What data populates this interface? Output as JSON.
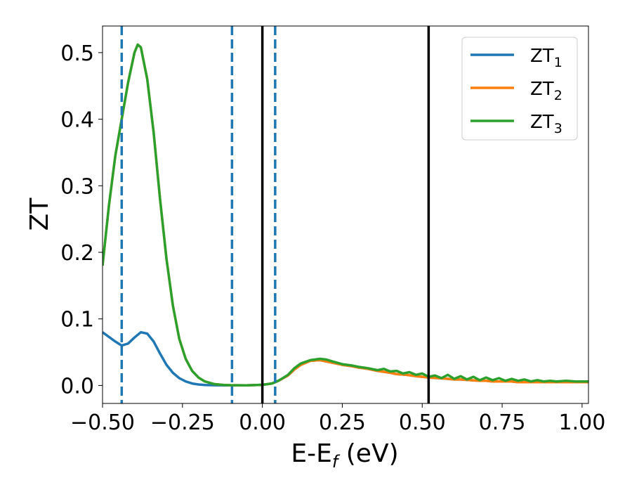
{
  "chart_data": {
    "type": "line",
    "xlabel": "E-E",
    "xlabel_sub": "f",
    "xlabel_unit": " (eV)",
    "ylabel": "ZT",
    "xlim": [
      -0.5,
      1.02
    ],
    "ylim": [
      -0.027,
      0.54
    ],
    "xticks": [
      -0.5,
      -0.25,
      0.0,
      0.25,
      0.5,
      0.75,
      1.0
    ],
    "xtick_labels": [
      "−0.50",
      "−0.25",
      "0.00",
      "0.25",
      "0.50",
      "0.75",
      "1.00"
    ],
    "yticks": [
      0.0,
      0.1,
      0.2,
      0.3,
      0.4,
      0.5
    ],
    "ytick_labels": [
      "0.0",
      "0.1",
      "0.2",
      "0.3",
      "0.4",
      "0.5"
    ],
    "grid": false,
    "legend_position": "top-right",
    "vlines_dashed": {
      "color": "#1f77b4",
      "x": [
        -0.44,
        -0.095,
        0.04
      ]
    },
    "vlines_solid": {
      "color": "#000000",
      "x": [
        0.0,
        0.52
      ]
    },
    "series": [
      {
        "name": "ZT",
        "sub": "1",
        "color": "#1f77b4",
        "x": [
          -0.5,
          -0.48,
          -0.46,
          -0.44,
          -0.42,
          -0.4,
          -0.38,
          -0.36,
          -0.34,
          -0.32,
          -0.3,
          -0.28,
          -0.26,
          -0.24,
          -0.22,
          -0.2,
          -0.18,
          -0.15,
          -0.12,
          -0.1,
          -0.05,
          0.0,
          0.03,
          0.05,
          0.08,
          0.1,
          0.12,
          0.15,
          0.18,
          0.2,
          0.22,
          0.25,
          0.28,
          0.3,
          0.33,
          0.36,
          0.4,
          0.42,
          0.45,
          0.48,
          0.5,
          0.52,
          0.55,
          0.58,
          0.6,
          0.62,
          0.65,
          0.68,
          0.7,
          0.72,
          0.75,
          0.78,
          0.8,
          0.83,
          0.86,
          0.9,
          0.95,
          1.0,
          1.02
        ],
        "values": [
          0.08,
          0.073,
          0.066,
          0.06,
          0.063,
          0.072,
          0.08,
          0.078,
          0.066,
          0.048,
          0.031,
          0.019,
          0.011,
          0.006,
          0.003,
          0.0015,
          0.0008,
          0.0003,
          0.0001,
          0.0001,
          0.0002,
          0.001,
          0.003,
          0.007,
          0.015,
          0.024,
          0.031,
          0.037,
          0.038,
          0.036,
          0.034,
          0.031,
          0.029,
          0.027,
          0.025,
          0.022,
          0.019,
          0.017,
          0.016,
          0.014,
          0.013,
          0.012,
          0.011,
          0.01,
          0.009,
          0.009,
          0.008,
          0.007,
          0.007,
          0.006,
          0.006,
          0.006,
          0.005,
          0.005,
          0.005,
          0.005,
          0.005,
          0.005,
          0.005
        ]
      },
      {
        "name": "ZT",
        "sub": "2",
        "color": "#ff7f0e",
        "x": [
          -0.5,
          -0.48,
          -0.46,
          -0.44,
          -0.42,
          -0.4,
          -0.39,
          -0.38,
          -0.36,
          -0.34,
          -0.32,
          -0.3,
          -0.28,
          -0.26,
          -0.24,
          -0.22,
          -0.2,
          -0.18,
          -0.15,
          -0.12,
          -0.1,
          -0.05,
          0.0,
          0.03,
          0.05,
          0.08,
          0.1,
          0.12,
          0.15,
          0.18,
          0.2,
          0.22,
          0.25,
          0.28,
          0.3,
          0.33,
          0.36,
          0.4,
          0.42,
          0.45,
          0.48,
          0.5,
          0.52,
          0.55,
          0.58,
          0.6,
          0.62,
          0.65,
          0.68,
          0.7,
          0.72,
          0.75,
          0.78,
          0.8,
          0.83,
          0.86,
          0.9,
          0.95,
          1.0,
          1.02
        ],
        "values": [
          0.18,
          0.27,
          0.345,
          0.4,
          0.455,
          0.5,
          0.512,
          0.508,
          0.46,
          0.38,
          0.28,
          0.19,
          0.12,
          0.07,
          0.04,
          0.022,
          0.012,
          0.006,
          0.002,
          0.0008,
          0.0004,
          0.0002,
          0.001,
          0.003,
          0.007,
          0.015,
          0.024,
          0.031,
          0.037,
          0.038,
          0.036,
          0.034,
          0.031,
          0.029,
          0.027,
          0.025,
          0.022,
          0.019,
          0.017,
          0.016,
          0.014,
          0.013,
          0.012,
          0.011,
          0.01,
          0.009,
          0.009,
          0.008,
          0.007,
          0.007,
          0.006,
          0.006,
          0.006,
          0.005,
          0.005,
          0.005,
          0.005,
          0.005,
          0.005,
          0.005
        ]
      },
      {
        "name": "ZT",
        "sub": "3",
        "color": "#2ca02c",
        "x": [
          -0.5,
          -0.48,
          -0.46,
          -0.44,
          -0.42,
          -0.4,
          -0.39,
          -0.38,
          -0.36,
          -0.34,
          -0.32,
          -0.3,
          -0.28,
          -0.26,
          -0.24,
          -0.22,
          -0.2,
          -0.18,
          -0.15,
          -0.12,
          -0.1,
          -0.05,
          0.0,
          0.03,
          0.05,
          0.08,
          0.1,
          0.12,
          0.15,
          0.18,
          0.2,
          0.22,
          0.25,
          0.28,
          0.3,
          0.33,
          0.36,
          0.38,
          0.4,
          0.42,
          0.44,
          0.46,
          0.48,
          0.5,
          0.52,
          0.54,
          0.56,
          0.58,
          0.6,
          0.62,
          0.64,
          0.66,
          0.68,
          0.7,
          0.72,
          0.74,
          0.76,
          0.78,
          0.8,
          0.82,
          0.84,
          0.86,
          0.88,
          0.9,
          0.92,
          0.95,
          0.98,
          1.0,
          1.02
        ],
        "values": [
          0.18,
          0.27,
          0.345,
          0.4,
          0.455,
          0.5,
          0.512,
          0.508,
          0.46,
          0.38,
          0.28,
          0.19,
          0.12,
          0.07,
          0.04,
          0.022,
          0.012,
          0.006,
          0.002,
          0.0008,
          0.0004,
          0.0002,
          0.001,
          0.003,
          0.007,
          0.016,
          0.026,
          0.033,
          0.038,
          0.04,
          0.039,
          0.036,
          0.032,
          0.03,
          0.028,
          0.026,
          0.023,
          0.025,
          0.021,
          0.022,
          0.018,
          0.02,
          0.016,
          0.018,
          0.013,
          0.015,
          0.011,
          0.016,
          0.01,
          0.014,
          0.009,
          0.013,
          0.008,
          0.012,
          0.008,
          0.011,
          0.007,
          0.01,
          0.007,
          0.009,
          0.006,
          0.008,
          0.006,
          0.007,
          0.006,
          0.007,
          0.006,
          0.006,
          0.006
        ]
      }
    ]
  }
}
